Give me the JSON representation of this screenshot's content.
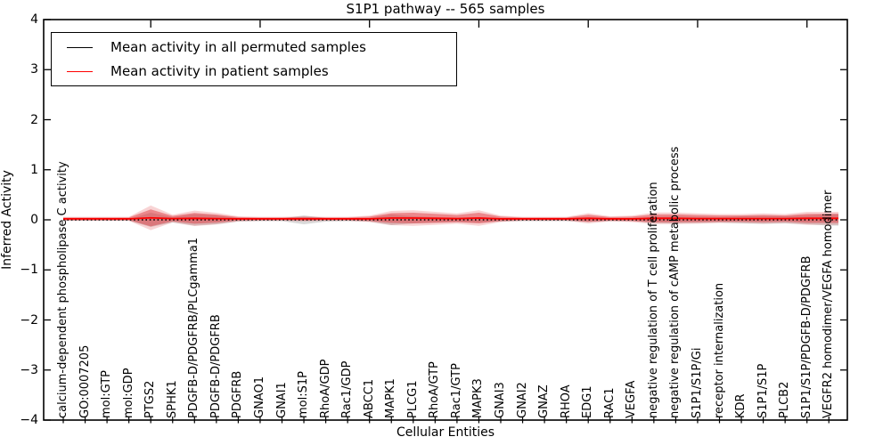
{
  "title": "S1P1 pathway -- 565 samples",
  "axes": {
    "x_label": "Cellular Entities",
    "y_label": "Inferred Activity"
  },
  "legend": {
    "items": [
      {
        "label": "Mean activity in all permuted samples",
        "color": "#000000"
      },
      {
        "label": "Mean activity in patient samples",
        "color": "#ff0000"
      }
    ]
  },
  "colors": {
    "permuted_line": "#000000",
    "patient_line": "#ff0000",
    "permuted_band": "#808080",
    "patient_band": "#dc2d32",
    "axis": "#000000"
  },
  "chart_data": {
    "type": "line",
    "title": "S1P1 pathway -- 565 samples",
    "xlabel": "Cellular Entities",
    "ylabel": "Inferred Activity",
    "ylim": [
      -4,
      4
    ],
    "yticks": [
      {
        "value": 4,
        "label": "4"
      },
      {
        "value": 3,
        "label": "3"
      },
      {
        "value": 2,
        "label": "2"
      },
      {
        "value": 1,
        "label": "1"
      },
      {
        "value": 0,
        "label": "0"
      },
      {
        "value": -1,
        "label": "−1"
      },
      {
        "value": -2,
        "label": "−2"
      },
      {
        "value": -3,
        "label": "−3"
      },
      {
        "value": -4,
        "label": "−4"
      }
    ],
    "grid": false,
    "legend_position": "upper left",
    "top_tick_category_indices": [
      4,
      9,
      14,
      19,
      24,
      29,
      34
    ],
    "categories": [
      "calcium-dependent phospholipase C activity",
      "GO:0007205",
      "mol:GTP",
      "mol:GDP",
      "PTGS2",
      "SPHK1",
      "PDGFB-D/PDGFRB/PLCgamma1",
      "PDGFB-D/PDGFRB",
      "PDGFRB",
      "GNAO1",
      "GNAI1",
      "mol:S1P",
      "RhoA/GDP",
      "Rac1/GDP",
      "ABCC1",
      "MAPK1",
      "PLCG1",
      "RhoA/GTP",
      "Rac1/GTP",
      "MAPK3",
      "GNAI3",
      "GNAI2",
      "GNAZ",
      "RHOA",
      "EDG1",
      "RAC1",
      "VEGFA",
      "negative regulation of T cell proliferation",
      "negative regulation of cAMP metabolic process",
      "S1P1/S1P/Gi",
      "receptor internalization",
      "KDR",
      "S1P1/S1P",
      "PLCB2",
      "S1P1/S1P/PDGFB-D/PDGFRB",
      "VEGFR2 homodimer/VEGFA homodimer"
    ],
    "series": [
      {
        "name": "Mean activity in all permuted samples",
        "line_color": "#000000",
        "line_style": "dotted",
        "band_color": "#808080",
        "band_alpha": 0.3,
        "mean": [
          0,
          0,
          0,
          0,
          0,
          0,
          0,
          0,
          0,
          0,
          0,
          0,
          0,
          0,
          0,
          0,
          0,
          0,
          0,
          0,
          0,
          0,
          0,
          0,
          0,
          0,
          0,
          0,
          0,
          0,
          0,
          0,
          0,
          0,
          0,
          0
        ],
        "band_halfwidth": [
          0.018,
          0.018,
          0.018,
          0.018,
          0.142,
          0.053,
          0.116,
          0.089,
          0.036,
          0.027,
          0.027,
          0.089,
          0.036,
          0.027,
          0.036,
          0.107,
          0.071,
          0.053,
          0.044,
          0.053,
          0.036,
          0.027,
          0.027,
          0.027,
          0.044,
          0.027,
          0.027,
          0.062,
          0.071,
          0.062,
          0.053,
          0.071,
          0.08,
          0.071,
          0.089,
          0.116
        ]
      },
      {
        "name": "Mean activity in patient samples",
        "line_color": "#ff0000",
        "line_style": "solid",
        "band_color": "#dc2d32",
        "band_alpha": 0.45,
        "mean": [
          0.02,
          0.02,
          0.02,
          0.02,
          0.04,
          0.025,
          0.03,
          0.025,
          0.02,
          0.02,
          0.02,
          0.02,
          0.02,
          0.02,
          0.02,
          0.035,
          0.035,
          0.03,
          0.025,
          0.035,
          0.02,
          0.02,
          0.02,
          0.02,
          0.03,
          0.02,
          0.02,
          0.03,
          0.03,
          0.025,
          0.025,
          0.025,
          0.025,
          0.025,
          0.03,
          0.03
        ],
        "band_halfwidth": [
          0.027,
          0.027,
          0.027,
          0.027,
          0.17,
          0.053,
          0.107,
          0.08,
          0.036,
          0.027,
          0.027,
          0.036,
          0.027,
          0.027,
          0.044,
          0.098,
          0.107,
          0.089,
          0.071,
          0.107,
          0.044,
          0.027,
          0.027,
          0.027,
          0.071,
          0.036,
          0.044,
          0.08,
          0.08,
          0.071,
          0.062,
          0.062,
          0.071,
          0.062,
          0.089,
          0.089
        ]
      }
    ]
  }
}
